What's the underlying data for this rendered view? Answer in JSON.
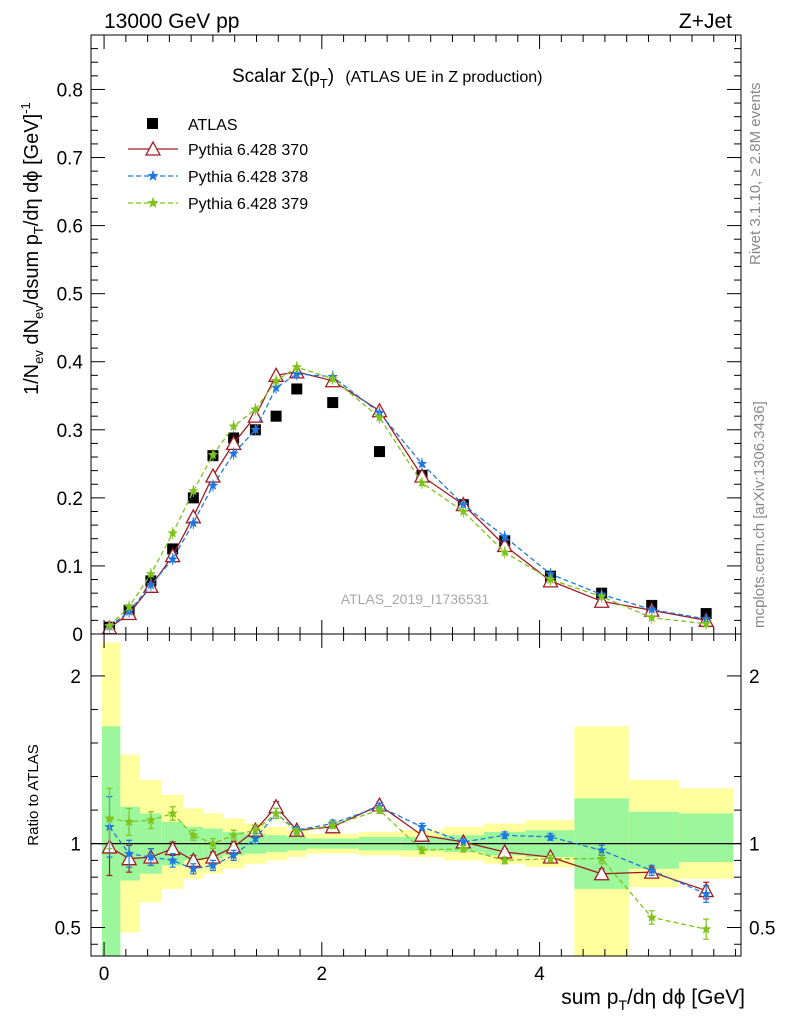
{
  "header": {
    "left": "13000 GeV pp",
    "right": "Z+Jet"
  },
  "side_labels": {
    "rivet": "Rivet 3.1.10, ≥ 2.8M events",
    "mcplots": "mcplots.cern.ch [arXiv:1306.3436]"
  },
  "chart_data": [
    {
      "type": "scatter",
      "title_main": "Scalar Σ(p",
      "title_sub": "T",
      "title_close": ")",
      "title_rest": "(ATLAS UE in Z production)",
      "watermark": "ATLAS_2019_I1736531",
      "ylabel_parts": [
        "1/N",
        "ev",
        " dN",
        "ev",
        "/dsum p",
        "T",
        "/dη dϕ  [GeV]",
        "-1"
      ],
      "xlim": [
        -0.12,
        5.85
      ],
      "ylim": [
        0,
        0.88
      ],
      "yticks": [
        0,
        0.1,
        0.2,
        0.3,
        0.4,
        0.5,
        0.6,
        0.7,
        0.8
      ],
      "ytick_labels": [
        "0",
        "0.1",
        "0.2",
        "0.3",
        "0.4",
        "0.5",
        "0.6",
        "0.7",
        "0.8"
      ],
      "legend_position": "top-left",
      "series": [
        {
          "name": "ATLAS",
          "color": "#000000",
          "marker": "square",
          "x": [
            0.05,
            0.23,
            0.43,
            0.63,
            0.82,
            1.0,
            1.19,
            1.39,
            1.58,
            1.77,
            2.1,
            2.53,
            2.92,
            3.3,
            3.68,
            4.1,
            4.57,
            5.03,
            5.53
          ],
          "y": [
            0.01,
            0.035,
            0.078,
            0.125,
            0.2,
            0.262,
            0.288,
            0.3,
            0.32,
            0.36,
            0.34,
            0.268,
            0.233,
            0.19,
            0.137,
            0.085,
            0.06,
            0.042,
            0.03
          ]
        },
        {
          "name": "Pythia 6.428 370",
          "color": "#a01c24",
          "marker": "triangle",
          "dashed": false,
          "x": [
            0.05,
            0.23,
            0.43,
            0.63,
            0.82,
            1.0,
            1.19,
            1.39,
            1.58,
            1.77,
            2.1,
            2.53,
            2.92,
            3.3,
            3.68,
            4.1,
            4.57,
            5.03,
            5.53
          ],
          "y": [
            0.009,
            0.03,
            0.07,
            0.115,
            0.172,
            0.232,
            0.28,
            0.32,
            0.38,
            0.385,
            0.372,
            0.328,
            0.232,
            0.19,
            0.13,
            0.078,
            0.048,
            0.035,
            0.02
          ]
        },
        {
          "name": "Pythia 6.428 378",
          "color": "#1f78e0",
          "marker": "star",
          "dashed": true,
          "x": [
            0.05,
            0.23,
            0.43,
            0.63,
            0.82,
            1.0,
            1.19,
            1.39,
            1.58,
            1.77,
            2.1,
            2.53,
            2.92,
            3.3,
            3.68,
            4.1,
            4.57,
            5.03,
            5.53
          ],
          "y": [
            0.011,
            0.033,
            0.072,
            0.11,
            0.163,
            0.218,
            0.265,
            0.3,
            0.362,
            0.382,
            0.378,
            0.325,
            0.25,
            0.19,
            0.143,
            0.088,
            0.058,
            0.036,
            0.022
          ]
        },
        {
          "name": "Pythia 6.428 379",
          "color": "#7fc31c",
          "marker": "star",
          "dashed": true,
          "x": [
            0.05,
            0.23,
            0.43,
            0.63,
            0.82,
            1.0,
            1.19,
            1.39,
            1.58,
            1.77,
            2.1,
            2.53,
            2.92,
            3.3,
            3.68,
            4.1,
            4.57,
            5.03,
            5.53
          ],
          "y": [
            0.012,
            0.04,
            0.088,
            0.148,
            0.21,
            0.263,
            0.305,
            0.33,
            0.372,
            0.392,
            0.375,
            0.318,
            0.222,
            0.18,
            0.12,
            0.08,
            0.055,
            0.024,
            0.015
          ]
        }
      ]
    },
    {
      "type": "scatter",
      "ylabel": "Ratio to ATLAS",
      "xlabel_parts": [
        "sum p",
        "T",
        "/dη dϕ  [GeV]"
      ],
      "xlim": [
        -0.12,
        5.85
      ],
      "ylim": [
        0.33,
        2.25
      ],
      "yticks": [
        0.5,
        1,
        2
      ],
      "ytick_labels": [
        "0.5",
        "1",
        "2"
      ],
      "xticks": [
        0,
        2,
        4
      ],
      "xtick_labels": [
        "0",
        "2",
        "4"
      ],
      "reference_line": 1,
      "bands": [
        {
          "x0": -0.02,
          "x1": 0.15,
          "y_lo": 0.33,
          "y_hi": 2.2,
          "g_lo": 0.33,
          "g_hi": 1.7
        },
        {
          "x0": 0.15,
          "x1": 0.33,
          "y_lo": 0.47,
          "y_hi": 1.53,
          "g_lo": 0.78,
          "g_hi": 1.22
        },
        {
          "x0": 0.33,
          "x1": 0.53,
          "y_lo": 0.65,
          "y_hi": 1.38,
          "g_lo": 0.82,
          "g_hi": 1.18
        },
        {
          "x0": 0.53,
          "x1": 0.73,
          "y_lo": 0.73,
          "y_hi": 1.29,
          "g_lo": 0.87,
          "g_hi": 1.13
        },
        {
          "x0": 0.73,
          "x1": 0.91,
          "y_lo": 0.79,
          "y_hi": 1.21,
          "g_lo": 0.9,
          "g_hi": 1.1
        },
        {
          "x0": 0.91,
          "x1": 1.09,
          "y_lo": 0.82,
          "y_hi": 1.18,
          "g_lo": 0.91,
          "g_hi": 1.09
        },
        {
          "x0": 1.09,
          "x1": 1.29,
          "y_lo": 0.85,
          "y_hi": 1.15,
          "g_lo": 0.93,
          "g_hi": 1.07
        },
        {
          "x0": 1.29,
          "x1": 1.49,
          "y_lo": 0.88,
          "y_hi": 1.12,
          "g_lo": 0.94,
          "g_hi": 1.06
        },
        {
          "x0": 1.49,
          "x1": 1.68,
          "y_lo": 0.9,
          "y_hi": 1.1,
          "g_lo": 0.95,
          "g_hi": 1.05
        },
        {
          "x0": 1.68,
          "x1": 1.86,
          "y_lo": 0.92,
          "y_hi": 1.08,
          "g_lo": 0.96,
          "g_hi": 1.04
        },
        {
          "x0": 1.86,
          "x1": 2.34,
          "y_lo": 0.94,
          "y_hi": 1.06,
          "g_lo": 0.97,
          "g_hi": 1.03
        },
        {
          "x0": 2.34,
          "x1": 2.72,
          "y_lo": 0.93,
          "y_hi": 1.07,
          "g_lo": 0.96,
          "g_hi": 1.04
        },
        {
          "x0": 2.72,
          "x1": 3.12,
          "y_lo": 0.92,
          "y_hi": 1.08,
          "g_lo": 0.96,
          "g_hi": 1.04
        },
        {
          "x0": 3.12,
          "x1": 3.49,
          "y_lo": 0.9,
          "y_hi": 1.1,
          "g_lo": 0.95,
          "g_hi": 1.05
        },
        {
          "x0": 3.49,
          "x1": 3.87,
          "y_lo": 0.88,
          "y_hi": 1.12,
          "g_lo": 0.93,
          "g_hi": 1.07
        },
        {
          "x0": 3.87,
          "x1": 4.32,
          "y_lo": 0.86,
          "y_hi": 1.14,
          "g_lo": 0.92,
          "g_hi": 1.08
        },
        {
          "x0": 4.32,
          "x1": 4.82,
          "y_lo": 0.33,
          "y_hi": 1.7,
          "g_lo": 0.73,
          "g_hi": 1.27
        },
        {
          "x0": 4.82,
          "x1": 5.28,
          "y_lo": 0.74,
          "y_hi": 1.38,
          "g_lo": 0.85,
          "g_hi": 1.19
        },
        {
          "x0": 5.28,
          "x1": 5.78,
          "y_lo": 0.79,
          "y_hi": 1.33,
          "g_lo": 0.89,
          "g_hi": 1.18
        }
      ],
      "band_colors": {
        "outer": "#ffff9e",
        "inner": "#9cf79c"
      },
      "series": [
        {
          "name": "Pythia 6.428 370",
          "color": "#a01c24",
          "marker": "triangle",
          "dashed": false,
          "x": [
            0.05,
            0.23,
            0.43,
            0.63,
            0.82,
            1.0,
            1.19,
            1.39,
            1.58,
            1.77,
            2.1,
            2.53,
            2.92,
            3.3,
            3.68,
            4.1,
            4.57,
            5.03,
            5.53
          ],
          "y": [
            0.98,
            0.91,
            0.92,
            0.97,
            0.9,
            0.92,
            0.98,
            1.08,
            1.22,
            1.08,
            1.1,
            1.23,
            1.05,
            1.01,
            0.95,
            0.92,
            0.82,
            0.83,
            0.72
          ],
          "err": [
            0.17,
            0.08,
            0.05,
            0.04,
            0.03,
            0.03,
            0.03,
            0.03,
            0.03,
            0.02,
            0.02,
            0.02,
            0.02,
            0.02,
            0.02,
            0.02,
            0.03,
            0.03,
            0.05
          ]
        },
        {
          "name": "Pythia 6.428 378",
          "color": "#1f78e0",
          "marker": "star",
          "dashed": true,
          "x": [
            0.05,
            0.23,
            0.43,
            0.63,
            0.82,
            1.0,
            1.19,
            1.39,
            1.58,
            1.77,
            2.1,
            2.53,
            2.92,
            3.3,
            3.68,
            4.1,
            4.57,
            5.03,
            5.53
          ],
          "y": [
            1.1,
            0.94,
            0.92,
            0.9,
            0.85,
            0.87,
            0.93,
            1.03,
            1.18,
            1.08,
            1.12,
            1.22,
            1.1,
            1.01,
            1.05,
            1.04,
            0.96,
            0.84,
            0.7
          ],
          "err": [
            0.18,
            0.08,
            0.05,
            0.04,
            0.03,
            0.03,
            0.03,
            0.03,
            0.03,
            0.02,
            0.02,
            0.02,
            0.02,
            0.02,
            0.02,
            0.02,
            0.03,
            0.03,
            0.05
          ]
        },
        {
          "name": "Pythia 6.428 379",
          "color": "#7fc31c",
          "marker": "star",
          "dashed": true,
          "x": [
            0.05,
            0.23,
            0.43,
            0.63,
            0.82,
            1.0,
            1.19,
            1.39,
            1.58,
            1.77,
            2.1,
            2.53,
            2.92,
            3.3,
            3.68,
            4.1,
            4.57,
            5.03,
            5.53
          ],
          "y": [
            1.15,
            1.13,
            1.14,
            1.18,
            1.05,
            1.0,
            1.05,
            1.08,
            1.18,
            1.07,
            1.11,
            1.2,
            0.96,
            0.97,
            0.9,
            0.91,
            0.91,
            0.56,
            0.49
          ],
          "err": [
            0.18,
            0.08,
            0.05,
            0.04,
            0.03,
            0.03,
            0.03,
            0.03,
            0.03,
            0.02,
            0.02,
            0.02,
            0.02,
            0.02,
            0.02,
            0.02,
            0.03,
            0.04,
            0.06
          ]
        }
      ]
    }
  ]
}
